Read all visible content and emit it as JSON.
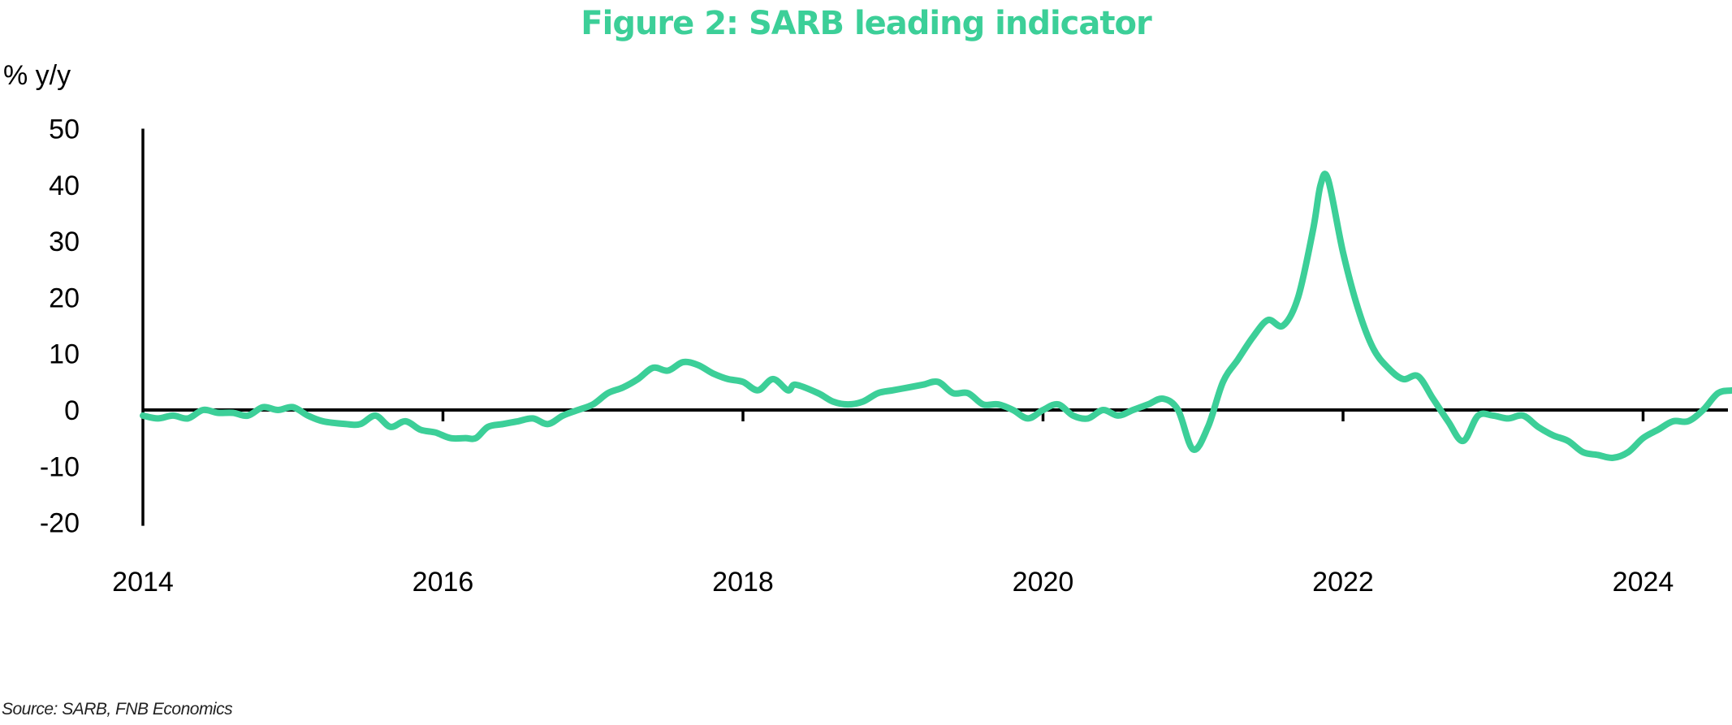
{
  "title": "Figure 2: SARB leading indicator",
  "unit_label": "% y/y",
  "source": "Source: SARB, FNB Economics",
  "colors": {
    "line": "#3ccf98",
    "title": "#3ccf98",
    "axis": "#000000"
  },
  "chart_data": {
    "type": "line",
    "title": "Figure 2: SARB leading indicator",
    "ylabel": "% y/y",
    "xlabel": "",
    "ylim": [
      -20,
      50
    ],
    "xlim": [
      2014.0,
      2024.65
    ],
    "yticks": [
      50,
      40,
      30,
      20,
      10,
      0,
      -10,
      -20
    ],
    "ytick_labels": [
      "50",
      "40",
      "30",
      "20",
      "10",
      "0",
      "-10",
      "-20"
    ],
    "xticks": [
      2014,
      2016,
      2018,
      2020,
      2022,
      2024
    ],
    "xtick_labels": [
      "2014",
      "2016",
      "2018",
      "2020",
      "2022",
      "2024"
    ],
    "grid": false,
    "series": [
      {
        "values": [
          [
            2014.0,
            -1
          ],
          [
            2014.1,
            -1.5
          ],
          [
            2014.2,
            -1
          ],
          [
            2014.3,
            -1.5
          ],
          [
            2014.4,
            0
          ],
          [
            2014.5,
            -0.5
          ],
          [
            2014.6,
            -0.5
          ],
          [
            2014.7,
            -1
          ],
          [
            2014.8,
            0.5
          ],
          [
            2014.9,
            0
          ],
          [
            2015.0,
            0.5
          ],
          [
            2015.1,
            -1
          ],
          [
            2015.2,
            -2
          ],
          [
            2015.35,
            -2.5
          ],
          [
            2015.45,
            -2.5
          ],
          [
            2015.55,
            -1
          ],
          [
            2015.65,
            -3
          ],
          [
            2015.75,
            -2
          ],
          [
            2015.85,
            -3.5
          ],
          [
            2015.95,
            -4
          ],
          [
            2016.05,
            -5
          ],
          [
            2016.15,
            -5
          ],
          [
            2016.22,
            -5
          ],
          [
            2016.3,
            -3
          ],
          [
            2016.4,
            -2.5
          ],
          [
            2016.5,
            -2
          ],
          [
            2016.6,
            -1.5
          ],
          [
            2016.7,
            -2.5
          ],
          [
            2016.8,
            -1
          ],
          [
            2016.9,
            0
          ],
          [
            2017.0,
            1
          ],
          [
            2017.1,
            3
          ],
          [
            2017.2,
            4
          ],
          [
            2017.3,
            5.5
          ],
          [
            2017.4,
            7.5
          ],
          [
            2017.5,
            7
          ],
          [
            2017.6,
            8.5
          ],
          [
            2017.7,
            8
          ],
          [
            2017.8,
            6.5
          ],
          [
            2017.9,
            5.5
          ],
          [
            2018.0,
            5
          ],
          [
            2018.1,
            3.5
          ],
          [
            2018.2,
            5.5
          ],
          [
            2018.3,
            3.5
          ],
          [
            2018.35,
            4.5
          ],
          [
            2018.5,
            3
          ],
          [
            2018.6,
            1.5
          ],
          [
            2018.7,
            1
          ],
          [
            2018.8,
            1.5
          ],
          [
            2018.9,
            3
          ],
          [
            2019.0,
            3.5
          ],
          [
            2019.1,
            4
          ],
          [
            2019.2,
            4.5
          ],
          [
            2019.3,
            5
          ],
          [
            2019.4,
            3
          ],
          [
            2019.5,
            3
          ],
          [
            2019.6,
            1
          ],
          [
            2019.7,
            1
          ],
          [
            2019.8,
            0
          ],
          [
            2019.9,
            -1.5
          ],
          [
            2020.0,
            0
          ],
          [
            2020.1,
            1
          ],
          [
            2020.2,
            -1
          ],
          [
            2020.3,
            -1.5
          ],
          [
            2020.4,
            0
          ],
          [
            2020.5,
            -1
          ],
          [
            2020.6,
            0
          ],
          [
            2020.7,
            1
          ],
          [
            2020.8,
            2
          ],
          [
            2020.9,
            0
          ],
          [
            2021.0,
            -7
          ],
          [
            2021.1,
            -3
          ],
          [
            2021.2,
            5
          ],
          [
            2021.3,
            9
          ],
          [
            2021.4,
            13
          ],
          [
            2021.5,
            16
          ],
          [
            2021.6,
            15
          ],
          [
            2021.7,
            20
          ],
          [
            2021.8,
            32
          ],
          [
            2021.85,
            40
          ],
          [
            2021.9,
            41
          ],
          [
            2022.0,
            28
          ],
          [
            2022.1,
            18
          ],
          [
            2022.2,
            11
          ],
          [
            2022.3,
            7.5
          ],
          [
            2022.4,
            5.5
          ],
          [
            2022.5,
            6
          ],
          [
            2022.6,
            2
          ],
          [
            2022.7,
            -2
          ],
          [
            2022.8,
            -5.5
          ],
          [
            2022.9,
            -1
          ],
          [
            2023.0,
            -1
          ],
          [
            2023.1,
            -1.5
          ],
          [
            2023.2,
            -1
          ],
          [
            2023.3,
            -3
          ],
          [
            2023.4,
            -4.5
          ],
          [
            2023.5,
            -5.5
          ],
          [
            2023.6,
            -7.5
          ],
          [
            2023.7,
            -8
          ],
          [
            2023.8,
            -8.5
          ],
          [
            2023.9,
            -7.5
          ],
          [
            2024.0,
            -5
          ],
          [
            2024.1,
            -3.5
          ],
          [
            2024.2,
            -2
          ],
          [
            2024.3,
            -2
          ],
          [
            2024.4,
            0
          ],
          [
            2024.5,
            3
          ],
          [
            2024.6,
            3.5
          ],
          [
            2024.7,
            4
          ],
          [
            2024.75,
            5
          ]
        ]
      }
    ]
  }
}
